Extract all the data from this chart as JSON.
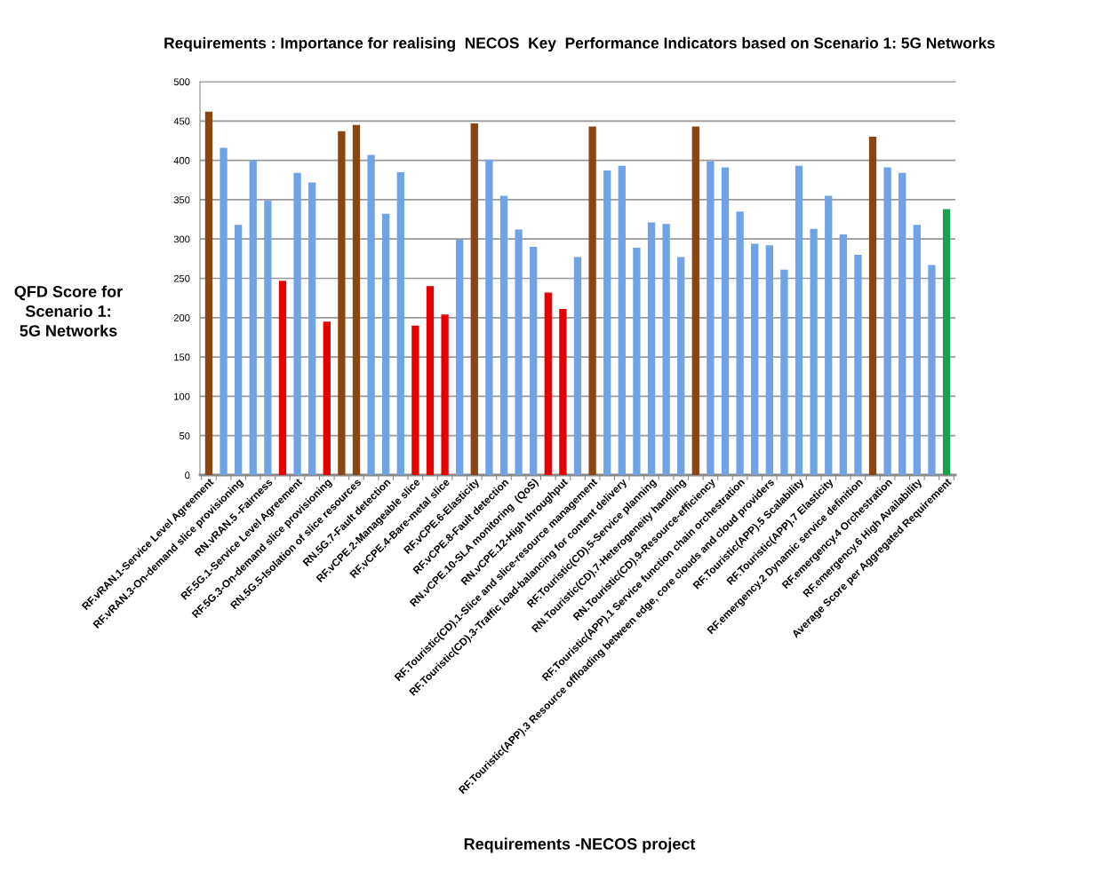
{
  "chart_data": {
    "type": "bar",
    "title": "Requirements : Importance for realising  NECOS  Key  Performance Indicators based on Scenario 1: 5G Networks",
    "xlabel": "Requirements -NECOS project",
    "ylabel": "QFD Score for\nScenario 1:\n5G Networks",
    "categories": [
      "RF.vRAN.1-Service Level Agreement",
      null,
      "RF.vRAN.3-On-demand slice provisioning",
      null,
      "RN.vRAN.5 -Fairness",
      null,
      "RF.5G.1-Service Level Agreement",
      null,
      "RF.5G.3-On-demand slice provisioning",
      null,
      "RN.5G.5-Isolation of slice resources",
      null,
      "RN.5G.7-Fault detection",
      null,
      "RF.vCPE.2-Manageable slice",
      null,
      "RF.vCPE.4-Bare-metal slice",
      null,
      "RF.vCPE.6-Elasticity",
      null,
      "RF.vCPE.8-Fault detection",
      null,
      "RN.vCPE.10-SLA monitoring  (QoS)",
      null,
      "RN.vCPE.12-High throughput",
      null,
      "RF.Touristic(CD).1-Slice and slice-resource management",
      null,
      "RF.Touristic(CD).3-Traffic load-balancing for content delivery",
      null,
      "RF.Touristic(CD).5-Service planning",
      null,
      "RN.Touristic(CD).7-Heterogeneity handling",
      null,
      "RN.Touristic(CD).9-Resource-efficiency",
      null,
      "RF.Touristic(APP).1 Service function chain orchestration",
      null,
      "RF.Touristic(APP).3 Resource offloading between edge, core clouds and cloud providers",
      null,
      "RF.Touristic(APP).5 Scalability",
      null,
      "RF.Touristic(APP).7 Elasticity",
      null,
      "RF.emergency.2 Dynamic service definition",
      null,
      "RF.emergency.4 Orchestration",
      null,
      "RF.emergency.6 High Availability",
      null,
      "Average Score per Aggregated Requirement"
    ],
    "values": [
      462,
      416,
      318,
      400,
      349,
      247,
      384,
      372,
      195,
      437,
      445,
      407,
      332,
      385,
      190,
      240,
      204,
      299,
      447,
      401,
      355,
      312,
      290,
      232,
      211,
      277,
      443,
      387,
      393,
      289,
      321,
      319,
      277,
      443,
      399,
      391,
      335,
      294,
      292,
      261,
      393,
      313,
      355,
      306,
      280,
      430,
      391,
      384,
      318,
      267,
      338
    ],
    "colors": [
      "#8b4513",
      "#6fa3e6",
      "#6fa3e6",
      "#6fa3e6",
      "#6fa3e6",
      "#e60000",
      "#6fa3e6",
      "#6fa3e6",
      "#e60000",
      "#8b4513",
      "#8b4513",
      "#6fa3e6",
      "#6fa3e6",
      "#6fa3e6",
      "#e60000",
      "#e60000",
      "#e60000",
      "#6fa3e6",
      "#8b4513",
      "#6fa3e6",
      "#6fa3e6",
      "#6fa3e6",
      "#6fa3e6",
      "#e60000",
      "#e60000",
      "#6fa3e6",
      "#8b4513",
      "#6fa3e6",
      "#6fa3e6",
      "#6fa3e6",
      "#6fa3e6",
      "#6fa3e6",
      "#6fa3e6",
      "#8b4513",
      "#6fa3e6",
      "#6fa3e6",
      "#6fa3e6",
      "#6fa3e6",
      "#6fa3e6",
      "#6fa3e6",
      "#6fa3e6",
      "#6fa3e6",
      "#6fa3e6",
      "#6fa3e6",
      "#6fa3e6",
      "#8b4513",
      "#6fa3e6",
      "#6fa3e6",
      "#6fa3e6",
      "#6fa3e6",
      "#16a34a"
    ],
    "ylim": [
      0,
      500
    ],
    "yticks": [
      0,
      50,
      100,
      150,
      200,
      250,
      300,
      350,
      400,
      450,
      500
    ],
    "grid": "y"
  }
}
